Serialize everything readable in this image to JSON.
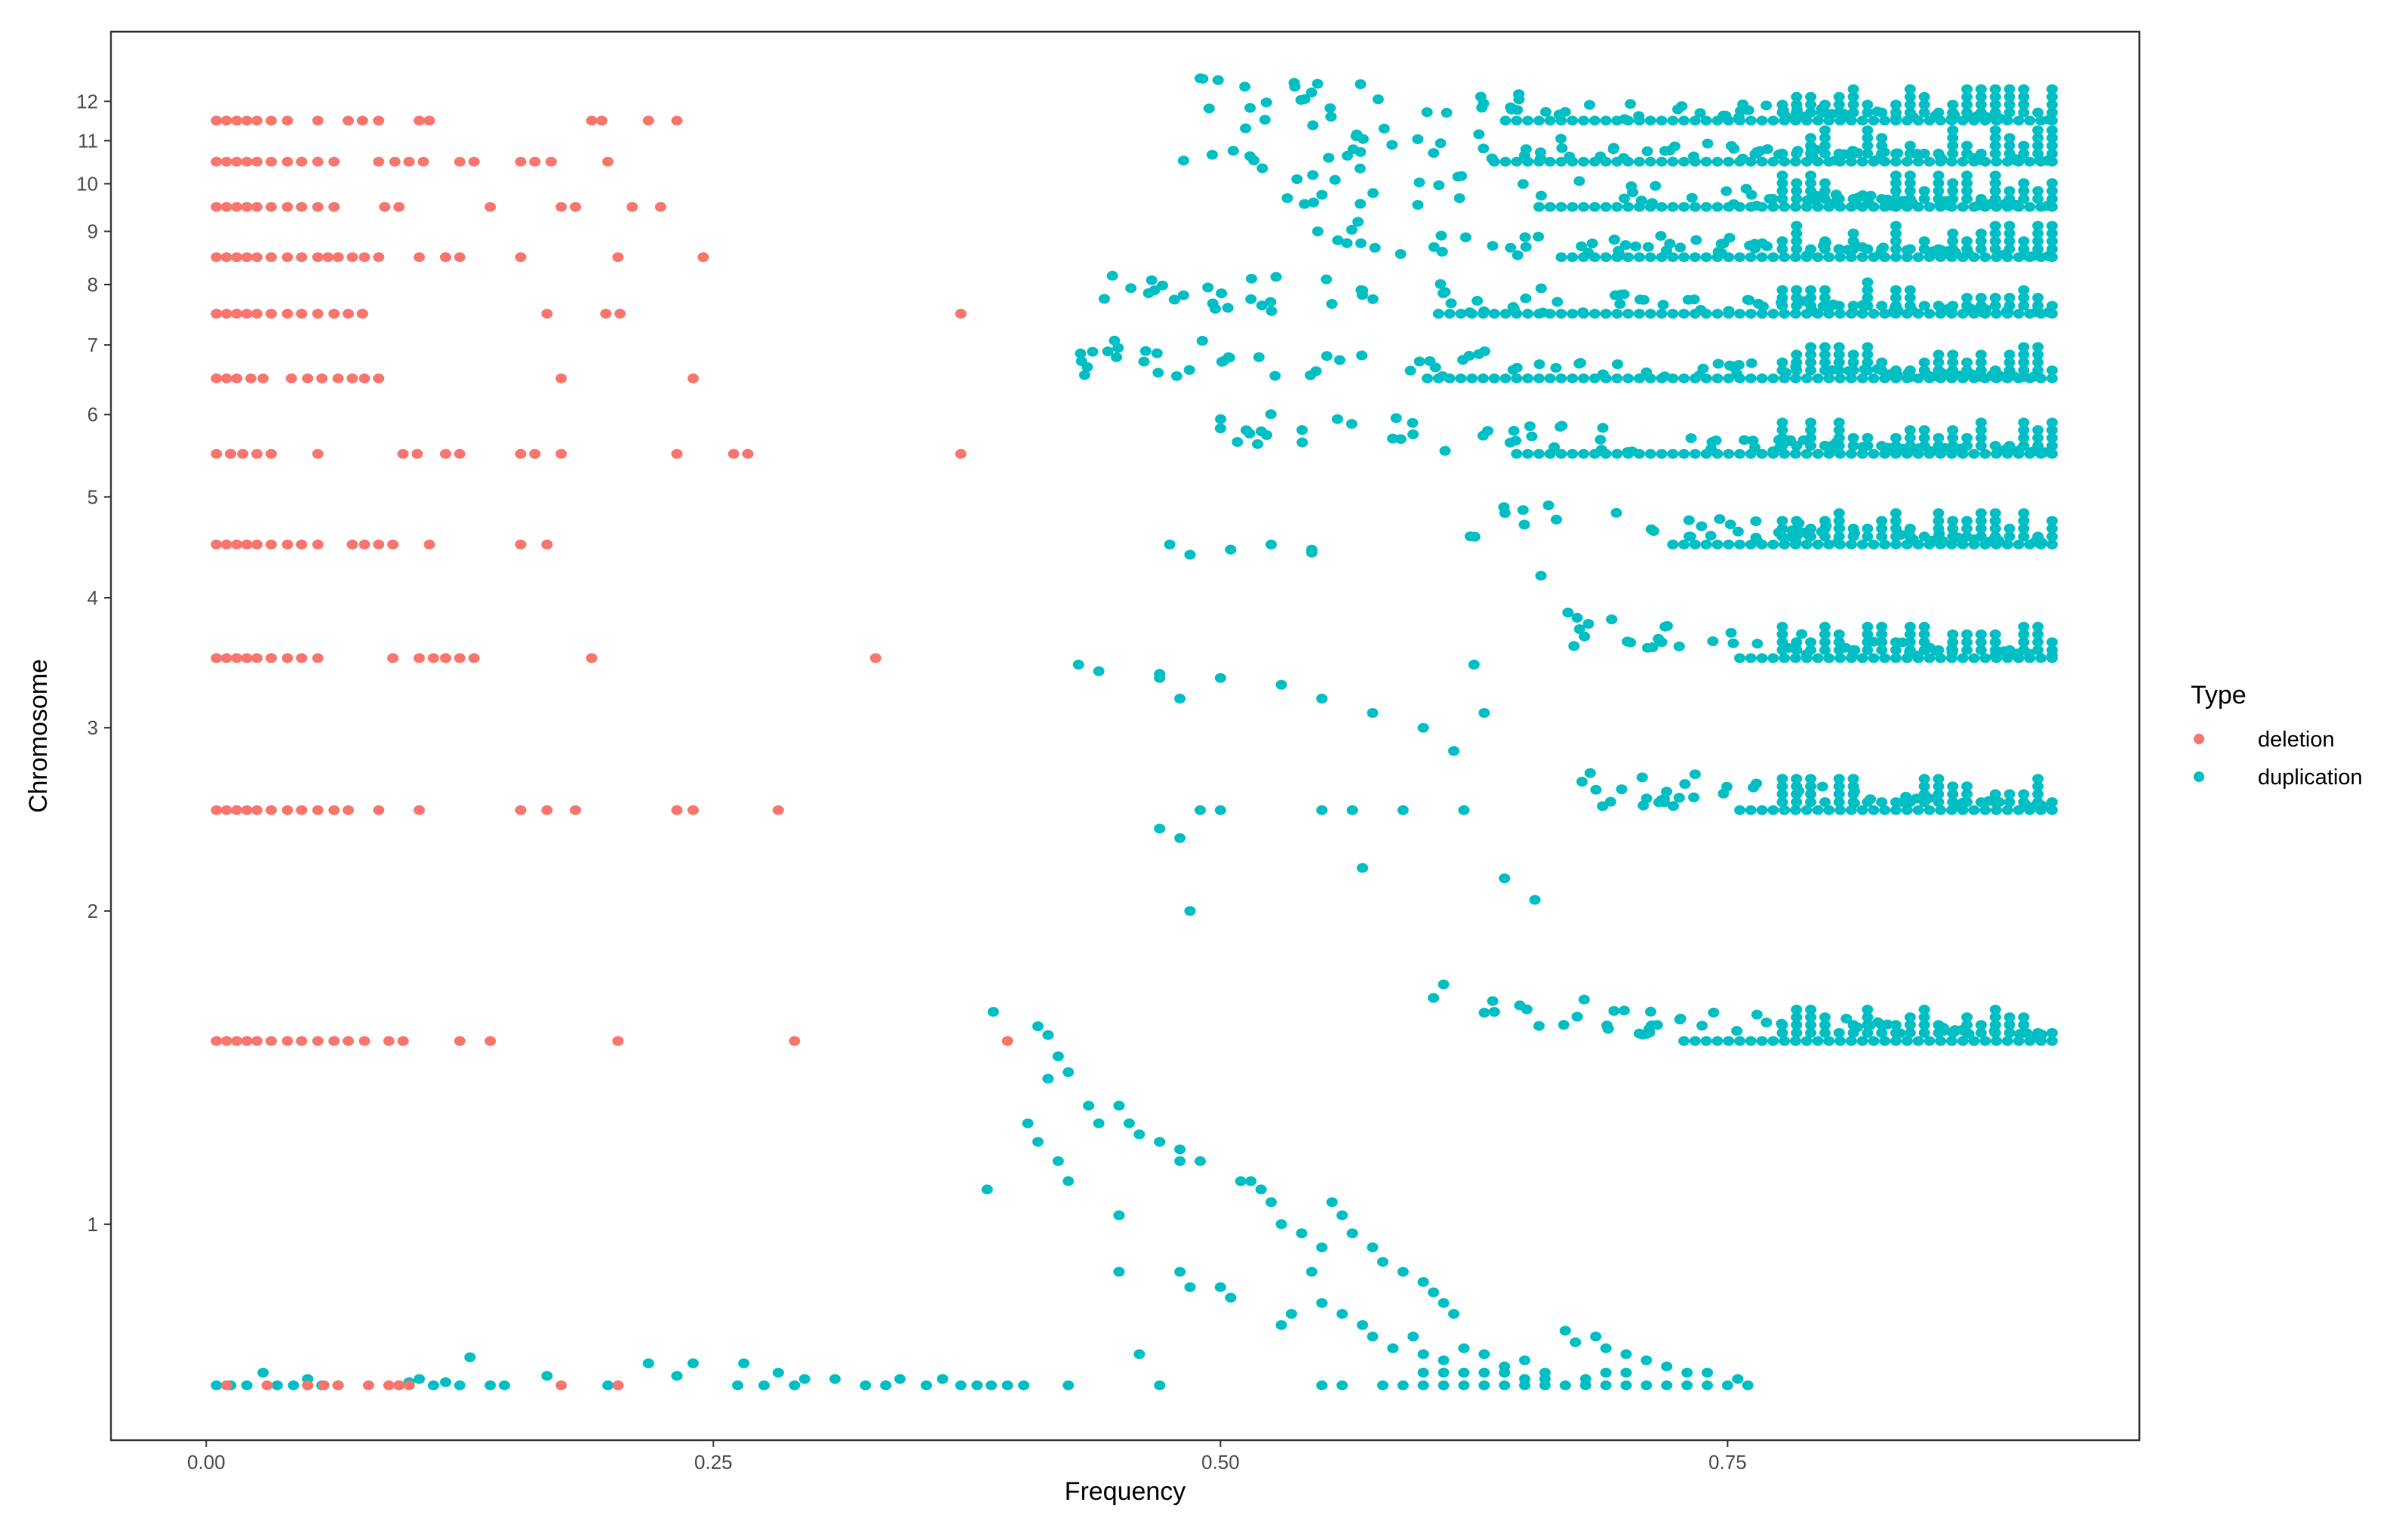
{
  "chart_data": {
    "type": "scatter",
    "title": "",
    "xlabel": "Frequency",
    "ylabel": "Chromosome",
    "xlim": [
      -0.047,
      0.953
    ],
    "xticks": [
      0.0,
      0.25,
      0.5,
      0.75
    ],
    "xtick_labels": [
      "0.00",
      "0.25",
      "0.50",
      "0.75"
    ],
    "y_scale": "log",
    "ylim": [
      0.62,
      14.0
    ],
    "yticks": [
      1,
      2,
      3,
      4,
      5,
      6,
      7,
      8,
      9,
      10,
      11,
      12
    ],
    "ytick_labels": [
      "1",
      "2",
      "3",
      "4",
      "5",
      "6",
      "7",
      "8",
      "9",
      "10",
      "11",
      "12"
    ],
    "grid": false,
    "legend": {
      "title": "Type",
      "position": "right"
    },
    "series": [
      {
        "name": "deletion",
        "color": "#F8766D",
        "bands": [
          {
            "y": 11.5,
            "x": [
              0.005,
              0.01,
              0.015,
              0.02,
              0.025,
              0.032,
              0.04,
              0.055,
              0.07,
              0.077,
              0.085,
              0.105,
              0.11,
              0.19,
              0.195,
              0.218,
              0.232
            ]
          },
          {
            "y": 10.5,
            "x": [
              0.005,
              0.01,
              0.015,
              0.02,
              0.025,
              0.032,
              0.04,
              0.047,
              0.055,
              0.063,
              0.085,
              0.093,
              0.1,
              0.107,
              0.125,
              0.132,
              0.155,
              0.162,
              0.17,
              0.198
            ]
          },
          {
            "y": 9.5,
            "x": [
              0.005,
              0.01,
              0.015,
              0.02,
              0.025,
              0.032,
              0.04,
              0.047,
              0.055,
              0.063,
              0.088,
              0.095,
              0.14,
              0.175,
              0.182,
              0.21,
              0.224
            ]
          },
          {
            "y": 8.5,
            "x": [
              0.005,
              0.01,
              0.015,
              0.02,
              0.025,
              0.032,
              0.04,
              0.047,
              0.055,
              0.06,
              0.065,
              0.072,
              0.078,
              0.085,
              0.105,
              0.118,
              0.125,
              0.155,
              0.203,
              0.245
            ]
          },
          {
            "y": 7.5,
            "x": [
              0.005,
              0.01,
              0.015,
              0.02,
              0.025,
              0.032,
              0.04,
              0.047,
              0.055,
              0.063,
              0.07,
              0.077,
              0.168,
              0.197,
              0.204,
              0.372
            ]
          },
          {
            "y": 6.5,
            "x": [
              0.005,
              0.01,
              0.015,
              0.022,
              0.028,
              0.042,
              0.05,
              0.057,
              0.065,
              0.072,
              0.078,
              0.085,
              0.175,
              0.24
            ]
          },
          {
            "y": 5.5,
            "x": [
              0.005,
              0.012,
              0.018,
              0.025,
              0.032,
              0.055,
              0.097,
              0.104,
              0.118,
              0.125,
              0.155,
              0.162,
              0.175,
              0.232,
              0.26,
              0.267,
              0.372
            ]
          },
          {
            "y": 4.5,
            "x": [
              0.005,
              0.01,
              0.015,
              0.02,
              0.025,
              0.032,
              0.04,
              0.047,
              0.055,
              0.072,
              0.078,
              0.085,
              0.092,
              0.11,
              0.155,
              0.168
            ]
          },
          {
            "y": 3.5,
            "x": [
              0.005,
              0.01,
              0.015,
              0.02,
              0.025,
              0.032,
              0.04,
              0.047,
              0.055,
              0.092,
              0.105,
              0.112,
              0.118,
              0.125,
              0.132,
              0.19,
              0.33
            ]
          },
          {
            "y": 2.5,
            "x": [
              0.005,
              0.01,
              0.015,
              0.02,
              0.025,
              0.032,
              0.04,
              0.047,
              0.055,
              0.063,
              0.07,
              0.085,
              0.105,
              0.155,
              0.168,
              0.182,
              0.232,
              0.24,
              0.282
            ]
          },
          {
            "y": 1.5,
            "x": [
              0.005,
              0.01,
              0.015,
              0.02,
              0.025,
              0.032,
              0.04,
              0.047,
              0.055,
              0.063,
              0.07,
              0.078,
              0.09,
              0.097,
              0.125,
              0.14,
              0.203,
              0.29,
              0.395
            ]
          },
          {
            "y": 0.7,
            "x": [
              0.01,
              0.03,
              0.05,
              0.058,
              0.065,
              0.08,
              0.09,
              0.095,
              0.1,
              0.175,
              0.203
            ]
          }
        ]
      },
      {
        "name": "duplication",
        "color": "#00BFC4",
        "points": [
          [
            0.005,
            0.7
          ],
          [
            0.012,
            0.7
          ],
          [
            0.02,
            0.7
          ],
          [
            0.028,
            0.72
          ],
          [
            0.035,
            0.7
          ],
          [
            0.043,
            0.7
          ],
          [
            0.05,
            0.71
          ],
          [
            0.057,
            0.7
          ],
          [
            0.065,
            0.7
          ],
          [
            0.095,
            0.7
          ],
          [
            0.1,
            0.705
          ],
          [
            0.105,
            0.71
          ],
          [
            0.112,
            0.7
          ],
          [
            0.118,
            0.705
          ],
          [
            0.125,
            0.7
          ],
          [
            0.13,
            0.745
          ],
          [
            0.14,
            0.7
          ],
          [
            0.147,
            0.7
          ],
          [
            0.168,
            0.715
          ],
          [
            0.198,
            0.7
          ],
          [
            0.218,
            0.735
          ],
          [
            0.232,
            0.715
          ],
          [
            0.24,
            0.735
          ],
          [
            0.262,
            0.7
          ],
          [
            0.265,
            0.735
          ],
          [
            0.275,
            0.7
          ],
          [
            0.282,
            0.72
          ],
          [
            0.29,
            0.7
          ],
          [
            0.295,
            0.71
          ],
          [
            0.31,
            0.71
          ],
          [
            0.325,
            0.7
          ],
          [
            0.335,
            0.7
          ],
          [
            0.342,
            0.71
          ],
          [
            0.355,
            0.7
          ],
          [
            0.363,
            0.71
          ],
          [
            0.372,
            0.7
          ],
          [
            0.38,
            0.7
          ],
          [
            0.387,
            0.7
          ],
          [
            0.395,
            0.7
          ],
          [
            0.403,
            0.7
          ],
          [
            0.385,
            1.08
          ],
          [
            0.388,
            1.6
          ],
          [
            0.41,
            1.55
          ],
          [
            0.415,
            1.52
          ],
          [
            0.42,
            1.45
          ],
          [
            0.415,
            1.38
          ],
          [
            0.425,
            1.4
          ],
          [
            0.405,
            1.25
          ],
          [
            0.41,
            1.2
          ],
          [
            0.42,
            1.15
          ],
          [
            0.425,
            1.1
          ],
          [
            0.435,
            1.3
          ],
          [
            0.44,
            1.25
          ],
          [
            0.45,
            1.3
          ],
          [
            0.455,
            1.25
          ],
          [
            0.46,
            1.22
          ],
          [
            0.47,
            1.2
          ],
          [
            0.48,
            1.18
          ],
          [
            0.48,
            1.15
          ],
          [
            0.49,
            1.15
          ],
          [
            0.45,
            1.02
          ],
          [
            0.45,
            0.9
          ],
          [
            0.46,
            0.75
          ],
          [
            0.47,
            0.7
          ],
          [
            0.425,
            0.7
          ],
          [
            0.48,
            0.9
          ],
          [
            0.485,
            0.87
          ],
          [
            0.5,
            0.87
          ],
          [
            0.505,
            0.85
          ],
          [
            0.51,
            1.1
          ],
          [
            0.515,
            1.1
          ],
          [
            0.52,
            1.08
          ],
          [
            0.525,
            1.05
          ],
          [
            0.53,
            1.0
          ],
          [
            0.54,
            0.98
          ],
          [
            0.545,
            0.9
          ],
          [
            0.55,
            0.95
          ],
          [
            0.555,
            1.05
          ],
          [
            0.56,
            1.02
          ],
          [
            0.565,
            0.98
          ],
          [
            0.575,
            0.95
          ],
          [
            0.58,
            0.92
          ],
          [
            0.59,
            0.9
          ],
          [
            0.6,
            0.88
          ],
          [
            0.605,
            0.86
          ],
          [
            0.61,
            0.84
          ],
          [
            0.615,
            0.82
          ],
          [
            0.53,
            0.8
          ],
          [
            0.535,
            0.82
          ],
          [
            0.55,
            0.84
          ],
          [
            0.56,
            0.82
          ],
          [
            0.57,
            0.8
          ],
          [
            0.575,
            0.78
          ],
          [
            0.585,
            0.76
          ],
          [
            0.595,
            0.78
          ],
          [
            0.6,
            0.75
          ],
          [
            0.61,
            0.74
          ],
          [
            0.62,
            0.76
          ],
          [
            0.63,
            0.75
          ],
          [
            0.64,
            0.73
          ],
          [
            0.65,
            0.74
          ],
          [
            0.66,
            0.72
          ],
          [
            0.67,
            0.79
          ],
          [
            0.675,
            0.77
          ],
          [
            0.685,
            0.78
          ],
          [
            0.69,
            0.76
          ],
          [
            0.7,
            0.75
          ],
          [
            0.71,
            0.74
          ],
          [
            0.72,
            0.73
          ],
          [
            0.73,
            0.72
          ],
          [
            0.74,
            0.72
          ],
          [
            0.755,
            0.71
          ],
          [
            0.55,
            0.7
          ],
          [
            0.56,
            0.7
          ],
          [
            0.58,
            0.7
          ],
          [
            0.59,
            0.7
          ],
          [
            0.6,
            0.7
          ],
          [
            0.61,
            0.7
          ],
          [
            0.62,
            0.7
          ],
          [
            0.63,
            0.7
          ],
          [
            0.64,
            0.7
          ],
          [
            0.65,
            0.7
          ],
          [
            0.66,
            0.7
          ],
          [
            0.67,
            0.7
          ],
          [
            0.68,
            0.7
          ],
          [
            0.69,
            0.7
          ],
          [
            0.7,
            0.7
          ],
          [
            0.71,
            0.7
          ],
          [
            0.72,
            0.7
          ],
          [
            0.73,
            0.7
          ],
          [
            0.74,
            0.7
          ],
          [
            0.75,
            0.7
          ],
          [
            0.76,
            0.7
          ],
          [
            0.6,
            0.72
          ],
          [
            0.61,
            0.72
          ],
          [
            0.62,
            0.72
          ],
          [
            0.63,
            0.72
          ],
          [
            0.64,
            0.72
          ],
          [
            0.65,
            0.71
          ],
          [
            0.66,
            0.71
          ],
          [
            0.68,
            0.71
          ],
          [
            0.69,
            0.72
          ],
          [
            0.7,
            0.72
          ],
          [
            0.43,
            3.45
          ],
          [
            0.44,
            3.4
          ],
          [
            0.47,
            3.35
          ],
          [
            0.48,
            3.2
          ],
          [
            0.5,
            3.35
          ],
          [
            0.53,
            3.3
          ],
          [
            0.55,
            3.2
          ],
          [
            0.575,
            3.1
          ],
          [
            0.6,
            3.0
          ],
          [
            0.615,
            2.85
          ],
          [
            0.625,
            3.45
          ],
          [
            0.63,
            3.1
          ],
          [
            0.62,
            2.5
          ],
          [
            0.59,
            2.5
          ],
          [
            0.565,
            2.5
          ],
          [
            0.55,
            2.5
          ],
          [
            0.57,
            2.2
          ],
          [
            0.5,
            2.5
          ],
          [
            0.49,
            2.5
          ],
          [
            0.48,
            2.35
          ],
          [
            0.47,
            2.4
          ],
          [
            0.485,
            2.0
          ],
          [
            0.61,
            1.7
          ],
          [
            0.605,
            1.65
          ],
          [
            0.64,
            2.15
          ],
          [
            0.635,
            1.6
          ],
          [
            0.655,
            2.05
          ],
          [
            0.475,
            4.5
          ],
          [
            0.485,
            4.4
          ],
          [
            0.505,
            4.45
          ],
          [
            0.525,
            4.5
          ],
          [
            0.545,
            4.45
          ],
          [
            0.545,
            4.42
          ],
          [
            0.658,
            4.2
          ],
          [
            0.47,
            3.38
          ]
        ],
        "bands": [
          {
            "y": 11.5,
            "x_min": 0.49,
            "x_max": 0.91
          },
          {
            "y": 10.5,
            "x_min": 0.48,
            "x_max": 0.91
          },
          {
            "y": 9.5,
            "x_min": 0.52,
            "x_max": 0.91
          },
          {
            "y": 8.5,
            "x_min": 0.53,
            "x_max": 0.91
          },
          {
            "y": 7.5,
            "x_min": 0.44,
            "x_max": 0.91
          },
          {
            "y": 6.5,
            "x_min": 0.43,
            "x_max": 0.91
          },
          {
            "y": 5.5,
            "x_min": 0.5,
            "x_max": 0.91
          },
          {
            "y": 4.5,
            "x_min": 0.62,
            "x_max": 0.91
          },
          {
            "y": 3.5,
            "x_min": 0.67,
            "x_max": 0.91
          },
          {
            "y": 2.5,
            "x_min": 0.67,
            "x_max": 0.91
          },
          {
            "y": 1.5,
            "x_min": 0.63,
            "x_max": 0.91
          }
        ]
      }
    ]
  }
}
